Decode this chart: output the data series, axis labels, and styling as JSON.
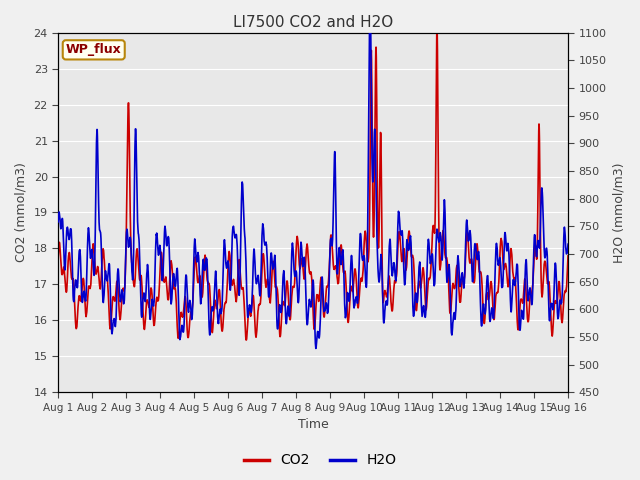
{
  "title": "LI7500 CO2 and H2O",
  "xlabel": "Time",
  "ylabel_left": "CO2 (mmol/m3)",
  "ylabel_right": "H2O (mmol/m3)",
  "site_label": "WP_flux",
  "ylim_left": [
    14.0,
    24.0
  ],
  "ylim_right": [
    450,
    1100
  ],
  "yticks_left": [
    14.0,
    15.0,
    16.0,
    17.0,
    18.0,
    19.0,
    20.0,
    21.0,
    22.0,
    23.0,
    24.0
  ],
  "yticks_right": [
    450,
    500,
    550,
    600,
    650,
    700,
    750,
    800,
    850,
    900,
    950,
    1000,
    1050,
    1100
  ],
  "xtick_labels": [
    "Aug 1",
    "Aug 2",
    "Aug 3",
    "Aug 4",
    "Aug 5",
    "Aug 6",
    "Aug 7",
    "Aug 8",
    "Aug 9",
    "Aug 10",
    "Aug 11",
    "Aug 12",
    "Aug 13",
    "Aug 14",
    "Aug 15",
    "Aug 16"
  ],
  "co2_color": "#cc0000",
  "h2o_color": "#0000cc",
  "plot_bg_color": "#e8e8e8",
  "fig_bg_color": "#f0f0f0",
  "grid_color": "#ffffff",
  "line_width": 1.2,
  "legend_co2": "CO2",
  "legend_h2o": "H2O",
  "n_days": 15,
  "n_per_day": 144
}
